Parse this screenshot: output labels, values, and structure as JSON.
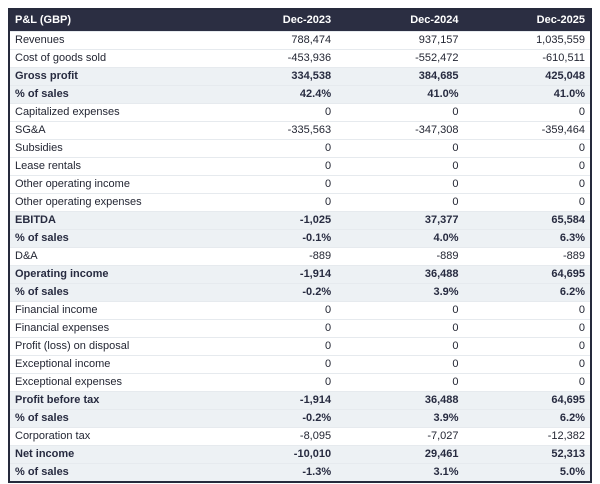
{
  "table": {
    "title_header": "P&L (GBP)",
    "columns": [
      "Dec-2023",
      "Dec-2024",
      "Dec-2025"
    ],
    "rows": [
      {
        "label": "Revenues",
        "values": [
          "788,474",
          "937,157",
          "1,035,559"
        ],
        "emphasis": false
      },
      {
        "label": "Cost of goods sold",
        "values": [
          "-453,936",
          "-552,472",
          "-610,511"
        ],
        "emphasis": false
      },
      {
        "label": "Gross profit",
        "values": [
          "334,538",
          "384,685",
          "425,048"
        ],
        "emphasis": true
      },
      {
        "label": "% of sales",
        "values": [
          "42.4%",
          "41.0%",
          "41.0%"
        ],
        "emphasis": true
      },
      {
        "label": "Capitalized expenses",
        "values": [
          "0",
          "0",
          "0"
        ],
        "emphasis": false
      },
      {
        "label": "SG&A",
        "values": [
          "-335,563",
          "-347,308",
          "-359,464"
        ],
        "emphasis": false
      },
      {
        "label": "Subsidies",
        "values": [
          "0",
          "0",
          "0"
        ],
        "emphasis": false
      },
      {
        "label": "Lease rentals",
        "values": [
          "0",
          "0",
          "0"
        ],
        "emphasis": false
      },
      {
        "label": "Other operating income",
        "values": [
          "0",
          "0",
          "0"
        ],
        "emphasis": false
      },
      {
        "label": "Other operating expenses",
        "values": [
          "0",
          "0",
          "0"
        ],
        "emphasis": false
      },
      {
        "label": "EBITDA",
        "values": [
          "-1,025",
          "37,377",
          "65,584"
        ],
        "emphasis": true
      },
      {
        "label": "% of sales",
        "values": [
          "-0.1%",
          "4.0%",
          "6.3%"
        ],
        "emphasis": true
      },
      {
        "label": "D&A",
        "values": [
          "-889",
          "-889",
          "-889"
        ],
        "emphasis": false
      },
      {
        "label": "Operating income",
        "values": [
          "-1,914",
          "36,488",
          "64,695"
        ],
        "emphasis": true
      },
      {
        "label": "% of sales",
        "values": [
          "-0.2%",
          "3.9%",
          "6.2%"
        ],
        "emphasis": true
      },
      {
        "label": "Financial income",
        "values": [
          "0",
          "0",
          "0"
        ],
        "emphasis": false
      },
      {
        "label": "Financial expenses",
        "values": [
          "0",
          "0",
          "0"
        ],
        "emphasis": false
      },
      {
        "label": "Profit (loss) on disposal",
        "values": [
          "0",
          "0",
          "0"
        ],
        "emphasis": false
      },
      {
        "label": "Exceptional income",
        "values": [
          "0",
          "0",
          "0"
        ],
        "emphasis": false
      },
      {
        "label": "Exceptional expenses",
        "values": [
          "0",
          "0",
          "0"
        ],
        "emphasis": false
      },
      {
        "label": "Profit before tax",
        "values": [
          "-1,914",
          "36,488",
          "64,695"
        ],
        "emphasis": true
      },
      {
        "label": "% of sales",
        "values": [
          "-0.2%",
          "3.9%",
          "6.2%"
        ],
        "emphasis": true
      },
      {
        "label": "Corporation tax",
        "values": [
          "-8,095",
          "-7,027",
          "-12,382"
        ],
        "emphasis": false
      },
      {
        "label": "Net income",
        "values": [
          "-10,010",
          "29,461",
          "52,313"
        ],
        "emphasis": true
      },
      {
        "label": "% of sales",
        "values": [
          "-1.3%",
          "3.1%",
          "5.0%"
        ],
        "emphasis": true
      }
    ],
    "colors": {
      "header_bg": "#2b2e42",
      "header_text": "#ffffff",
      "highlight_row_bg": "#edf1f4",
      "body_text": "#232633",
      "border": "#262a3c",
      "row_divider": "#e6eaee",
      "page_bg": "#ffffff"
    }
  },
  "chart_data": {
    "type": "table",
    "title": "P&L (GBP)",
    "columns": [
      "Dec-2023",
      "Dec-2024",
      "Dec-2025"
    ],
    "currency": "GBP",
    "rows": [
      {
        "label": "Revenues",
        "unit": "GBP",
        "values": [
          788474,
          937157,
          1035559
        ]
      },
      {
        "label": "Cost of goods sold",
        "unit": "GBP",
        "values": [
          -453936,
          -552472,
          -610511
        ]
      },
      {
        "label": "Gross profit",
        "unit": "GBP",
        "values": [
          334538,
          384685,
          425048
        ]
      },
      {
        "label": "% of sales (gross profit)",
        "unit": "%",
        "values": [
          42.4,
          41.0,
          41.0
        ]
      },
      {
        "label": "Capitalized expenses",
        "unit": "GBP",
        "values": [
          0,
          0,
          0
        ]
      },
      {
        "label": "SG&A",
        "unit": "GBP",
        "values": [
          -335563,
          -347308,
          -359464
        ]
      },
      {
        "label": "Subsidies",
        "unit": "GBP",
        "values": [
          0,
          0,
          0
        ]
      },
      {
        "label": "Lease rentals",
        "unit": "GBP",
        "values": [
          0,
          0,
          0
        ]
      },
      {
        "label": "Other operating income",
        "unit": "GBP",
        "values": [
          0,
          0,
          0
        ]
      },
      {
        "label": "Other operating expenses",
        "unit": "GBP",
        "values": [
          0,
          0,
          0
        ]
      },
      {
        "label": "EBITDA",
        "unit": "GBP",
        "values": [
          -1025,
          37377,
          65584
        ]
      },
      {
        "label": "% of sales (EBITDA)",
        "unit": "%",
        "values": [
          -0.1,
          4.0,
          6.3
        ]
      },
      {
        "label": "D&A",
        "unit": "GBP",
        "values": [
          -889,
          -889,
          -889
        ]
      },
      {
        "label": "Operating income",
        "unit": "GBP",
        "values": [
          -1914,
          36488,
          64695
        ]
      },
      {
        "label": "% of sales (operating income)",
        "unit": "%",
        "values": [
          -0.2,
          3.9,
          6.2
        ]
      },
      {
        "label": "Financial income",
        "unit": "GBP",
        "values": [
          0,
          0,
          0
        ]
      },
      {
        "label": "Financial expenses",
        "unit": "GBP",
        "values": [
          0,
          0,
          0
        ]
      },
      {
        "label": "Profit (loss) on disposal",
        "unit": "GBP",
        "values": [
          0,
          0,
          0
        ]
      },
      {
        "label": "Exceptional income",
        "unit": "GBP",
        "values": [
          0,
          0,
          0
        ]
      },
      {
        "label": "Exceptional expenses",
        "unit": "GBP",
        "values": [
          0,
          0,
          0
        ]
      },
      {
        "label": "Profit before tax",
        "unit": "GBP",
        "values": [
          -1914,
          36488,
          64695
        ]
      },
      {
        "label": "% of sales (profit before tax)",
        "unit": "%",
        "values": [
          -0.2,
          3.9,
          6.2
        ]
      },
      {
        "label": "Corporation tax",
        "unit": "GBP",
        "values": [
          -8095,
          -7027,
          -12382
        ]
      },
      {
        "label": "Net income",
        "unit": "GBP",
        "values": [
          -10010,
          29461,
          52313
        ]
      },
      {
        "label": "% of sales (net income)",
        "unit": "%",
        "values": [
          -1.3,
          3.1,
          5.0
        ]
      }
    ]
  }
}
